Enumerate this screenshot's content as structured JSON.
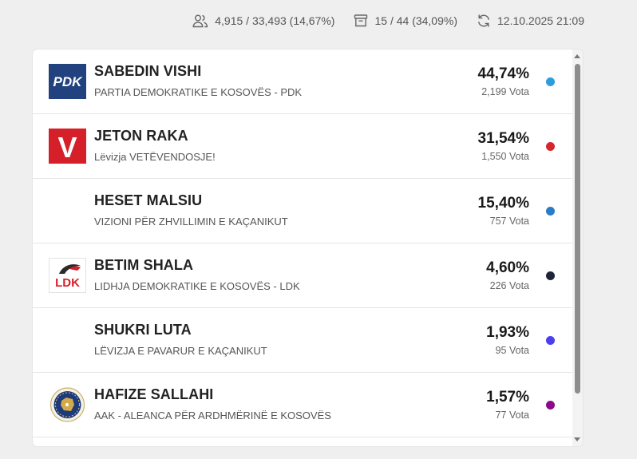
{
  "stats": {
    "voters": "4,915 / 33,493 (14,67%)",
    "stations": "15 / 44 (34,09%)",
    "updated": "12.10.2025 21:09"
  },
  "candidates": [
    {
      "name": "SABEDIN VISHI",
      "party": "PARTIA DEMOKRATIKE E KOSOVËS - PDK",
      "percent": "44,74%",
      "votes": "2,199 Vota",
      "color": "#2f9ddc",
      "logo": "pdk-logo",
      "logo_text": "PDK"
    },
    {
      "name": "JETON RAKA",
      "party": "Lëvizja VETËVENDOSJE!",
      "percent": "31,54%",
      "votes": "1,550 Vota",
      "color": "#d6262c",
      "logo": "vetevendosje-logo",
      "logo_text": "V"
    },
    {
      "name": "HESET MALSIU",
      "party": "VIZIONI PËR ZHVILLIMIN E KAÇANIKUT",
      "percent": "15,40%",
      "votes": "757 Vota",
      "color": "#2a7cc8",
      "logo": "none",
      "logo_text": ""
    },
    {
      "name": "BETIM SHALA",
      "party": "LIDHJA DEMOKRATIKE E KOSOVËS - LDK",
      "percent": "4,60%",
      "votes": "226 Vota",
      "color": "#1f2536",
      "logo": "ldk-logo",
      "logo_text": "LDK"
    },
    {
      "name": "SHUKRI LUTA",
      "party": "LËVIZJA E PAVARUR E KAÇANIKUT",
      "percent": "1,93%",
      "votes": "95 Vota",
      "color": "#4b3ff0",
      "logo": "none",
      "logo_text": ""
    },
    {
      "name": "HAFIZE SALLAHI",
      "party": "AAK - ALEANCA PËR ARDHMËRINË E KOSOVËS",
      "percent": "1,57%",
      "votes": "77 Vota",
      "color": "#8b0a8b",
      "logo": "aak-logo",
      "logo_text": ""
    }
  ]
}
